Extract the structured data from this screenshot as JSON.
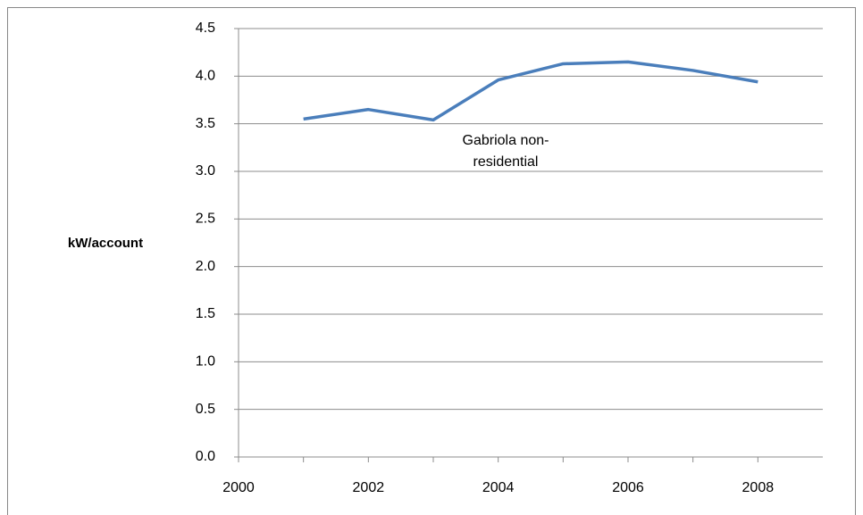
{
  "chart_data": {
    "type": "line",
    "y_label": "kW/account",
    "series": [
      {
        "name": "Gabriola non-residential",
        "color": "#4a7ebb",
        "x": [
          2001,
          2002,
          2003,
          2004,
          2005,
          2006,
          2007,
          2008
        ],
        "values": [
          3.55,
          3.65,
          3.54,
          3.96,
          4.13,
          4.15,
          4.06,
          3.94
        ]
      }
    ],
    "xlim": [
      2000,
      2009
    ],
    "xticks": [
      2000,
      2002,
      2004,
      2006,
      2008
    ],
    "ylim": [
      0,
      4.5
    ],
    "yticks": [
      {
        "value": 0,
        "label": "0.0"
      },
      0.5,
      {
        "value": 1,
        "label": "1.0"
      },
      1.5,
      {
        "value": 2,
        "label": "2.0"
      },
      2.5,
      {
        "value": 3,
        "label": "3.0"
      },
      3.5,
      {
        "value": 4,
        "label": "4.0"
      },
      4.5
    ],
    "grid": true
  }
}
